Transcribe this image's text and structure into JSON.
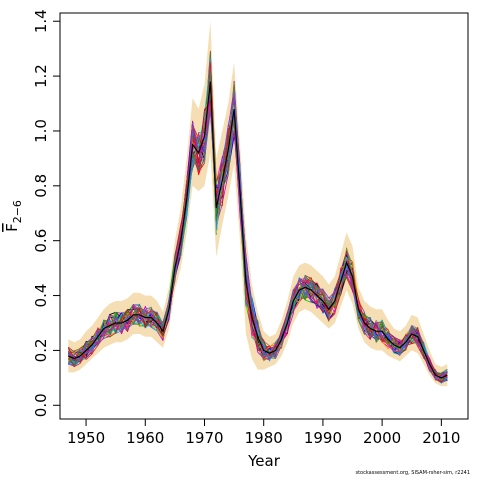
{
  "chart_data": {
    "type": "line",
    "title": "",
    "xlabel": "Year",
    "ylabel": "F",
    "ylabel_subscript": "2−6",
    "xlim": [
      1945.6,
      2014.5
    ],
    "ylim": [
      -0.05,
      1.43
    ],
    "x_ticks": [
      1950,
      1960,
      1970,
      1980,
      1990,
      2000,
      2010
    ],
    "x_tick_labels": [
      "1950",
      "1960",
      "1970",
      "1980",
      "1990",
      "2000",
      "2010"
    ],
    "y_ticks": [
      0.0,
      0.2,
      0.4,
      0.6,
      0.8,
      1.0,
      1.2,
      1.4
    ],
    "y_tick_labels": [
      "0.0",
      "0.2",
      "0.4",
      "0.6",
      "0.8",
      "1.0",
      "1.2",
      "1.4"
    ],
    "grid": false,
    "legend": "none",
    "band_color": "#f5deb3",
    "series_colors": [
      "#000000",
      "#ff0000",
      "#00cd00",
      "#0000ff",
      "#00cdcd",
      "#cd00cd",
      "#cdcd00",
      "#808080",
      "#ff8c00",
      "#8b008b",
      "#228b22",
      "#1e90ff",
      "#dc143c",
      "#8b4513",
      "#ff1493",
      "#6b8e23",
      "#4169e1",
      "#b22222",
      "#2e8b57",
      "#9932cc"
    ],
    "estimate": {
      "x": [
        1947,
        1948,
        1949,
        1950,
        1951,
        1952,
        1953,
        1954,
        1955,
        1956,
        1957,
        1958,
        1959,
        1960,
        1961,
        1962,
        1963,
        1964,
        1965,
        1966,
        1967,
        1968,
        1969,
        1970,
        1971,
        1972,
        1973,
        1974,
        1975,
        1976,
        1977,
        1978,
        1979,
        1980,
        1981,
        1982,
        1983,
        1984,
        1985,
        1986,
        1987,
        1988,
        1989,
        1990,
        1991,
        1992,
        1993,
        1994,
        1995,
        1996,
        1997,
        1998,
        1999,
        2000,
        2001,
        2002,
        2003,
        2004,
        2005,
        2006,
        2007,
        2008,
        2009,
        2010,
        2011
      ],
      "y": [
        0.18,
        0.17,
        0.18,
        0.2,
        0.22,
        0.25,
        0.28,
        0.29,
        0.3,
        0.3,
        0.31,
        0.33,
        0.33,
        0.32,
        0.32,
        0.3,
        0.27,
        0.35,
        0.5,
        0.6,
        0.75,
        0.95,
        0.92,
        0.98,
        1.18,
        0.72,
        0.82,
        0.93,
        1.08,
        0.78,
        0.45,
        0.32,
        0.25,
        0.2,
        0.19,
        0.2,
        0.24,
        0.3,
        0.38,
        0.42,
        0.43,
        0.42,
        0.4,
        0.38,
        0.35,
        0.38,
        0.45,
        0.52,
        0.47,
        0.35,
        0.3,
        0.28,
        0.27,
        0.27,
        0.24,
        0.22,
        0.21,
        0.23,
        0.26,
        0.25,
        0.2,
        0.15,
        0.11,
        0.1,
        0.11
      ]
    },
    "band": {
      "lower": [
        0.12,
        0.12,
        0.13,
        0.15,
        0.17,
        0.19,
        0.21,
        0.22,
        0.23,
        0.23,
        0.24,
        0.26,
        0.26,
        0.25,
        0.25,
        0.23,
        0.21,
        0.28,
        0.42,
        0.5,
        0.63,
        0.8,
        0.78,
        0.8,
        0.92,
        0.54,
        0.66,
        0.76,
        0.88,
        0.6,
        0.26,
        0.17,
        0.13,
        0.13,
        0.14,
        0.15,
        0.18,
        0.23,
        0.3,
        0.34,
        0.35,
        0.34,
        0.32,
        0.3,
        0.28,
        0.3,
        0.36,
        0.42,
        0.37,
        0.28,
        0.23,
        0.21,
        0.2,
        0.2,
        0.18,
        0.17,
        0.16,
        0.18,
        0.2,
        0.19,
        0.15,
        0.11,
        0.08,
        0.07,
        0.07
      ],
      "upper": [
        0.24,
        0.23,
        0.24,
        0.27,
        0.29,
        0.32,
        0.35,
        0.37,
        0.38,
        0.38,
        0.39,
        0.41,
        0.41,
        0.4,
        0.4,
        0.38,
        0.34,
        0.43,
        0.6,
        0.72,
        0.9,
        1.12,
        1.08,
        1.17,
        1.4,
        0.9,
        1.0,
        1.1,
        1.25,
        0.95,
        0.62,
        0.44,
        0.34,
        0.27,
        0.25,
        0.26,
        0.31,
        0.38,
        0.47,
        0.51,
        0.52,
        0.51,
        0.49,
        0.47,
        0.44,
        0.47,
        0.55,
        0.63,
        0.58,
        0.43,
        0.38,
        0.36,
        0.35,
        0.35,
        0.31,
        0.28,
        0.27,
        0.29,
        0.33,
        0.32,
        0.26,
        0.2,
        0.15,
        0.14,
        0.15
      ]
    }
  },
  "footnote": "stockassessment.org, SISAM-rsher-sim, r2241"
}
